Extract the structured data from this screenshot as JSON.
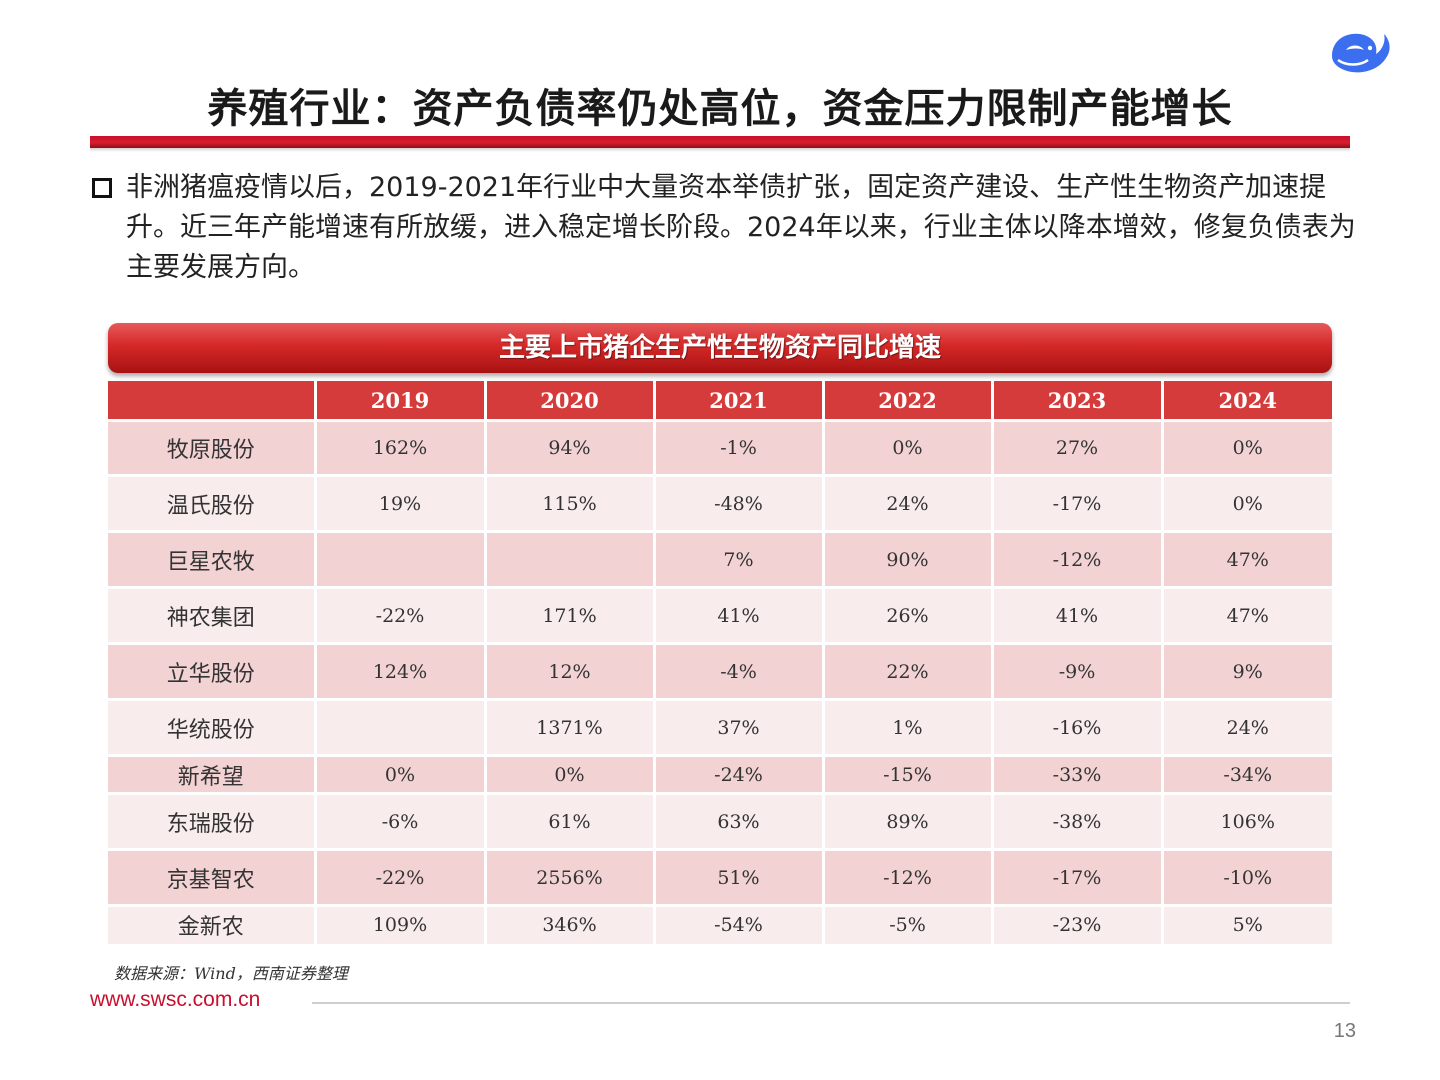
{
  "title": "养殖行业：资产负债率仍处高位，资金压力限制产能增长",
  "bullet": "非洲猪瘟疫情以后，2019-2021年行业中大量资本举债扩张，固定资产建设、生产性生物资产加速提升。近三年产能增速有所放缓，进入稳定增长阶段。2024年以来，行业主体以降本增效，修复负债表为主要发展方向。",
  "table": {
    "title": "主要上市猪企生产性生物资产同比增速",
    "columns": [
      "",
      "2019",
      "2020",
      "2021",
      "2022",
      "2023",
      "2024"
    ],
    "rows": [
      [
        "牧原股份",
        "162%",
        "94%",
        "-1%",
        "0%",
        "27%",
        "0%"
      ],
      [
        "温氏股份",
        "19%",
        "115%",
        "-48%",
        "24%",
        "-17%",
        "0%"
      ],
      [
        "巨星农牧",
        "",
        "",
        "7%",
        "90%",
        "-12%",
        "47%"
      ],
      [
        "神农集团",
        "-22%",
        "171%",
        "41%",
        "26%",
        "41%",
        "47%"
      ],
      [
        "立华股份",
        "124%",
        "12%",
        "-4%",
        "22%",
        "-9%",
        "9%"
      ],
      [
        "华统股份",
        "",
        "1371%",
        "37%",
        "1%",
        "-16%",
        "24%"
      ],
      [
        "新希望",
        "0%",
        "0%",
        "-24%",
        "-15%",
        "-33%",
        "-34%"
      ],
      [
        "东瑞股份",
        "-6%",
        "61%",
        "63%",
        "89%",
        "-38%",
        "106%"
      ],
      [
        "京基智农",
        "-22%",
        "2556%",
        "51%",
        "-12%",
        "-17%",
        "-10%"
      ],
      [
        "金新农",
        "109%",
        "346%",
        "-54%",
        "-5%",
        "-23%",
        "5%"
      ]
    ]
  },
  "source": "数据来源：Wind，西南证券整理",
  "website": "www.swsc.com.cn",
  "page_number": "13",
  "logo_icon": "whale-logo-icon",
  "colors": {
    "accent_red": "#c8102e",
    "header_red": "#d63b3b",
    "row_odd": "#f2d2d2",
    "row_even": "#f9ecec"
  }
}
